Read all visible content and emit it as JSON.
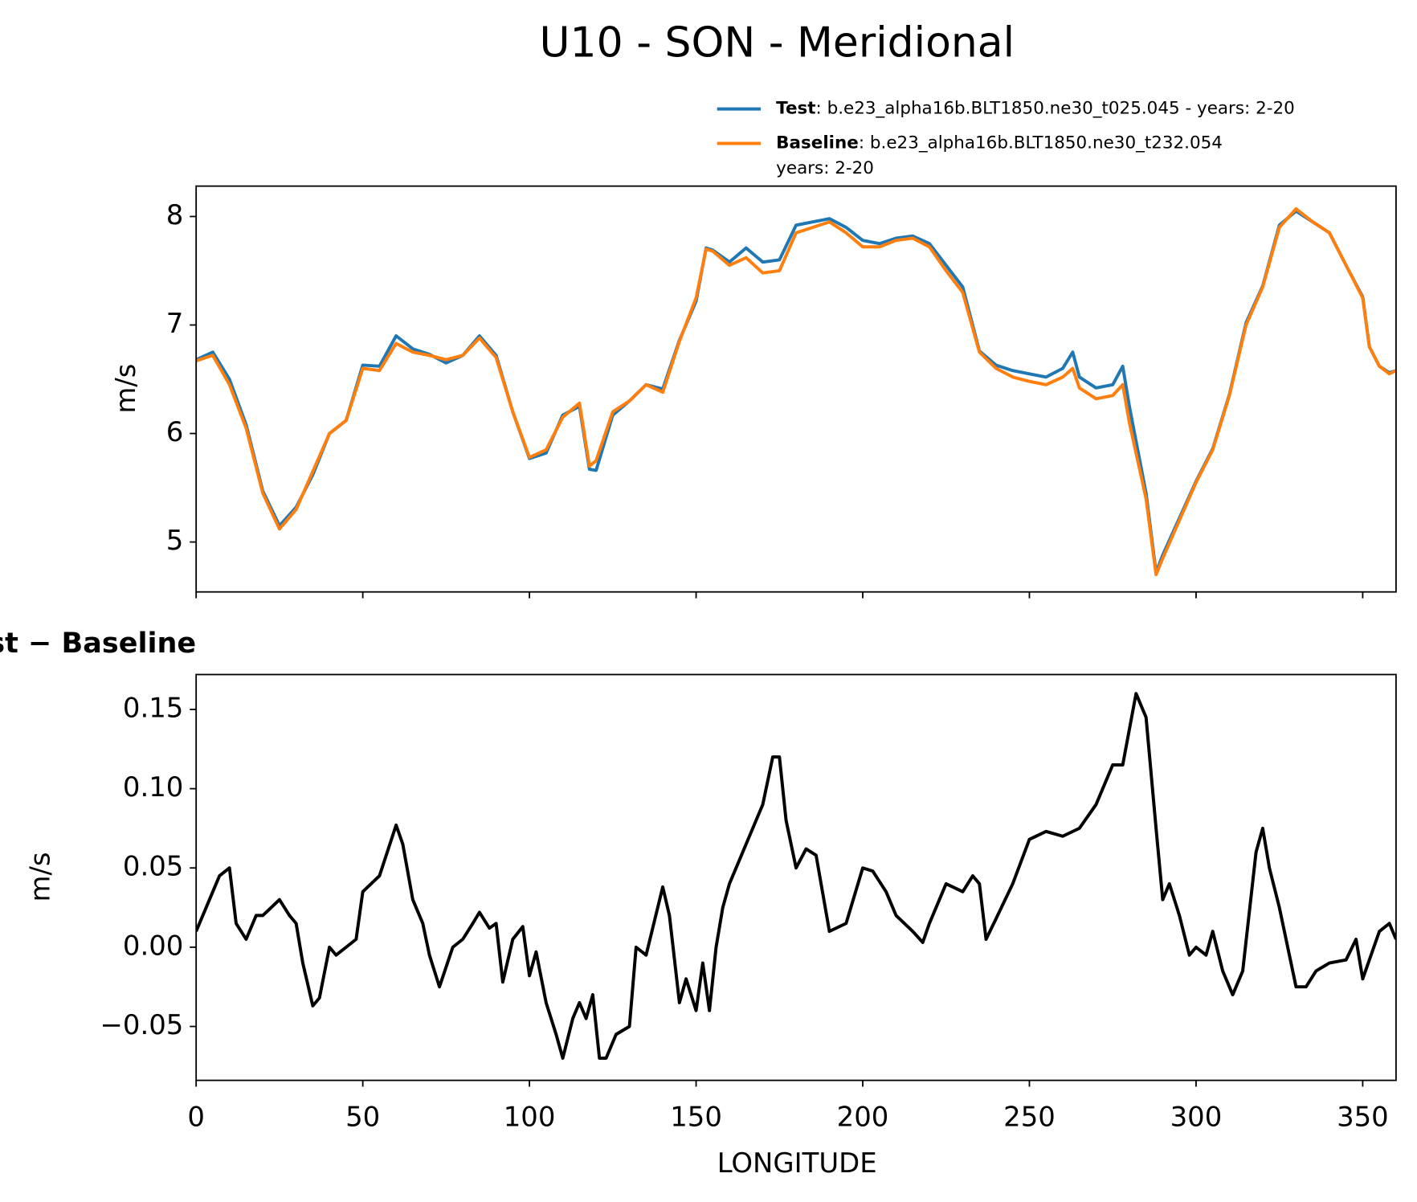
{
  "chart_data": [
    {
      "type": "line",
      "title": "U10 - SON - Meridional",
      "ylabel": "m/s",
      "x": [
        0,
        5,
        10,
        15,
        20,
        25,
        30,
        35,
        40,
        45,
        50,
        55,
        60,
        65,
        70,
        75,
        80,
        85,
        90,
        95,
        100,
        105,
        110,
        115,
        118,
        120,
        125,
        130,
        135,
        140,
        145,
        150,
        153,
        155,
        160,
        165,
        170,
        175,
        180,
        185,
        190,
        195,
        200,
        205,
        210,
        215,
        220,
        225,
        230,
        235,
        240,
        245,
        250,
        255,
        260,
        263,
        265,
        270,
        275,
        278,
        280,
        285,
        288,
        290,
        295,
        300,
        305,
        310,
        315,
        320,
        325,
        330,
        335,
        340,
        345,
        350,
        352,
        355,
        358,
        360
      ],
      "series": [
        {
          "name": "Test",
          "label_detail": [
            ": b.e23_alpha16b.BLT1850.ne30_t025.045 - years: 2-20"
          ],
          "color": "#1f77b4",
          "values": [
            6.68,
            6.75,
            6.5,
            6.08,
            5.47,
            5.15,
            5.32,
            5.62,
            6.0,
            6.12,
            6.63,
            6.62,
            6.9,
            6.78,
            6.73,
            6.65,
            6.72,
            6.9,
            6.72,
            6.2,
            5.77,
            5.82,
            6.17,
            6.25,
            5.67,
            5.66,
            6.17,
            6.3,
            6.45,
            6.41,
            6.86,
            7.22,
            7.71,
            7.69,
            7.58,
            7.71,
            7.58,
            7.6,
            7.92,
            7.95,
            7.98,
            7.9,
            7.78,
            7.75,
            7.8,
            7.82,
            7.75,
            7.55,
            7.35,
            6.76,
            6.63,
            6.58,
            6.55,
            6.52,
            6.6,
            6.75,
            6.52,
            6.42,
            6.45,
            6.62,
            6.25,
            5.45,
            4.72,
            4.88,
            5.22,
            5.56,
            5.86,
            6.36,
            7.02,
            7.36,
            7.92,
            8.05,
            7.95,
            7.85,
            7.55,
            7.26,
            6.8,
            6.62,
            6.56,
            6.58
          ]
        },
        {
          "name": "Baseline",
          "label_detail": [
            ": b.e23_alpha16b.BLT1850.ne30_t232.054",
            "years: 2-20"
          ],
          "color": "#ff7f0e",
          "values": [
            6.67,
            6.72,
            6.45,
            6.05,
            5.45,
            5.12,
            5.3,
            5.65,
            6.0,
            6.12,
            6.6,
            6.58,
            6.83,
            6.75,
            6.72,
            6.68,
            6.72,
            6.88,
            6.7,
            6.2,
            5.78,
            5.85,
            6.15,
            6.28,
            5.7,
            5.75,
            6.2,
            6.3,
            6.45,
            6.38,
            6.85,
            7.25,
            7.7,
            7.68,
            7.55,
            7.62,
            7.48,
            7.5,
            7.85,
            7.9,
            7.95,
            7.85,
            7.72,
            7.72,
            7.78,
            7.8,
            7.72,
            7.5,
            7.3,
            6.75,
            6.6,
            6.52,
            6.48,
            6.45,
            6.52,
            6.6,
            6.42,
            6.32,
            6.35,
            6.45,
            6.1,
            5.4,
            4.7,
            4.85,
            5.2,
            5.55,
            5.85,
            6.35,
            7.0,
            7.35,
            7.9,
            8.07,
            7.95,
            7.85,
            7.55,
            7.25,
            6.8,
            6.62,
            6.55,
            6.58
          ]
        }
      ],
      "xlim": [
        0,
        360
      ],
      "xticks": [
        0,
        50,
        100,
        150,
        200,
        250,
        300,
        350
      ],
      "ylim": [
        4.54,
        8.28
      ],
      "yticks": [
        5,
        6,
        7,
        8
      ]
    },
    {
      "type": "line",
      "title": "Test − Baseline",
      "ylabel": "m/s",
      "xlabel": "LONGITUDE",
      "color": "#000000",
      "x": [
        0,
        5,
        7,
        10,
        12,
        15,
        18,
        20,
        25,
        28,
        30,
        32,
        35,
        37,
        40,
        42,
        45,
        48,
        50,
        55,
        60,
        62,
        65,
        68,
        70,
        73,
        77,
        80,
        83,
        85,
        88,
        90,
        92,
        95,
        98,
        100,
        102,
        105,
        108,
        110,
        113,
        115,
        117,
        119,
        121,
        123,
        126,
        130,
        132,
        135,
        140,
        142,
        145,
        147,
        150,
        152,
        154,
        156,
        158,
        160,
        165,
        170,
        173,
        175,
        177,
        180,
        183,
        186,
        190,
        195,
        200,
        203,
        207,
        210,
        215,
        218,
        220,
        225,
        230,
        233,
        235,
        237,
        240,
        245,
        250,
        255,
        260,
        265,
        270,
        275,
        278,
        282,
        285,
        288,
        290,
        292,
        295,
        298,
        300,
        303,
        305,
        308,
        311,
        314,
        318,
        320,
        322,
        325,
        330,
        333,
        336,
        340,
        345,
        348,
        350,
        355,
        358,
        360
      ],
      "values": [
        0.01,
        0.035,
        0.045,
        0.05,
        0.015,
        0.005,
        0.02,
        0.02,
        0.03,
        0.02,
        0.015,
        -0.01,
        -0.037,
        -0.032,
        0.0,
        -0.005,
        0.0,
        0.005,
        0.035,
        0.045,
        0.077,
        0.065,
        0.03,
        0.015,
        -0.005,
        -0.025,
        0.0,
        0.005,
        0.015,
        0.022,
        0.012,
        0.015,
        -0.022,
        0.005,
        0.013,
        -0.018,
        -0.003,
        -0.035,
        -0.055,
        -0.07,
        -0.045,
        -0.035,
        -0.045,
        -0.03,
        -0.07,
        -0.07,
        -0.055,
        -0.05,
        0.0,
        -0.005,
        0.038,
        0.02,
        -0.035,
        -0.02,
        -0.04,
        -0.01,
        -0.04,
        0.0,
        0.025,
        0.04,
        0.065,
        0.09,
        0.12,
        0.12,
        0.08,
        0.05,
        0.062,
        0.058,
        0.01,
        0.015,
        0.05,
        0.048,
        0.035,
        0.02,
        0.01,
        0.003,
        0.015,
        0.04,
        0.035,
        0.045,
        0.04,
        0.005,
        0.018,
        0.04,
        0.068,
        0.073,
        0.07,
        0.075,
        0.09,
        0.115,
        0.115,
        0.16,
        0.145,
        0.075,
        0.03,
        0.04,
        0.02,
        -0.005,
        0.0,
        -0.005,
        0.01,
        -0.015,
        -0.03,
        -0.015,
        0.06,
        0.075,
        0.05,
        0.025,
        -0.025,
        -0.025,
        -0.015,
        -0.01,
        -0.008,
        0.005,
        -0.02,
        0.01,
        0.015,
        0.005
      ],
      "xlim": [
        0,
        360
      ],
      "xticks": [
        0,
        50,
        100,
        150,
        200,
        250,
        300,
        350
      ],
      "ylim": [
        -0.084,
        0.172
      ],
      "yticks": [
        {
          "value": -0.05,
          "label": "−0.05"
        },
        {
          "value": 0,
          "label": "0.00"
        },
        0.05,
        {
          "value": 0.1,
          "label": "0.10"
        },
        0.15
      ]
    }
  ]
}
